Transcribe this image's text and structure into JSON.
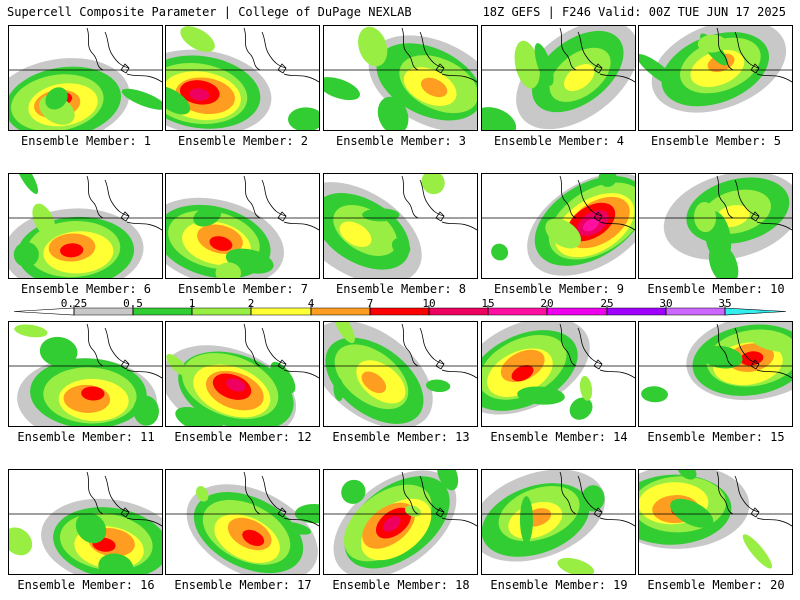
{
  "header": {
    "left": "Supercell Composite Parameter | College of DuPage NEXLAB",
    "right": "18Z GEFS | F246 Valid: 00Z TUE JUN 17 2025"
  },
  "legend": {
    "levels": [
      "0.25",
      "0.5",
      "1",
      "2",
      "4",
      "7",
      "10",
      "15",
      "20",
      "25",
      "30",
      "35"
    ],
    "colors": [
      "#ffffff",
      "#c8c8c8",
      "#32cd32",
      "#99ee44",
      "#ffff33",
      "#ff9d20",
      "#ff0000",
      "#ee0060",
      "#ff10a0",
      "#ee00ee",
      "#a000ff",
      "#cc66ff",
      "#33eeee"
    ]
  },
  "panels": [
    {
      "label": "Ensemble Member: 1",
      "intensity": 3
    },
    {
      "label": "Ensemble Member: 2",
      "intensity": 4
    },
    {
      "label": "Ensemble Member: 3",
      "intensity": 2
    },
    {
      "label": "Ensemble Member: 4",
      "intensity": 1
    },
    {
      "label": "Ensemble Member: 5",
      "intensity": 2
    },
    {
      "label": "Ensemble Member: 6",
      "intensity": 3
    },
    {
      "label": "Ensemble Member: 7",
      "intensity": 3
    },
    {
      "label": "Ensemble Member: 8",
      "intensity": 1
    },
    {
      "label": "Ensemble Member: 9",
      "intensity": 5
    },
    {
      "label": "Ensemble Member: 10",
      "intensity": 1
    },
    {
      "label": "Ensemble Member: 11",
      "intensity": 3
    },
    {
      "label": "Ensemble Member: 12",
      "intensity": 4
    },
    {
      "label": "Ensemble Member: 13",
      "intensity": 2
    },
    {
      "label": "Ensemble Member: 14",
      "intensity": 3
    },
    {
      "label": "Ensemble Member: 15",
      "intensity": 3
    },
    {
      "label": "Ensemble Member: 16",
      "intensity": 3
    },
    {
      "label": "Ensemble Member: 17",
      "intensity": 3
    },
    {
      "label": "Ensemble Member: 18",
      "intensity": 4
    },
    {
      "label": "Ensemble Member: 19",
      "intensity": 2
    },
    {
      "label": "Ensemble Member: 20",
      "intensity": 3
    }
  ]
}
